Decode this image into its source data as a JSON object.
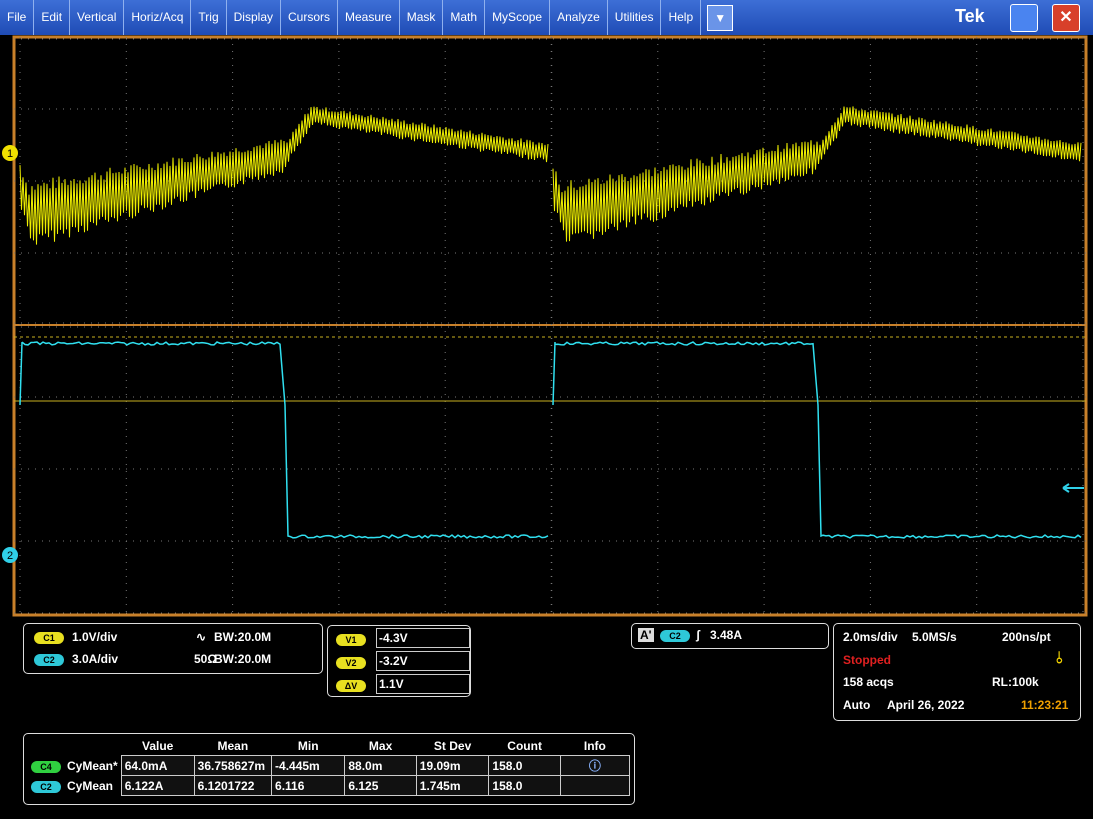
{
  "menu": [
    "File",
    "Edit",
    "Vertical",
    "Horiz/Acq",
    "Trig",
    "Display",
    "Cursors",
    "Measure",
    "Mask",
    "Math",
    "MyScope",
    "Analyze",
    "Utilities",
    "Help"
  ],
  "logo": "Tek",
  "markers": {
    "ch1": "1",
    "ch2": "2"
  },
  "channels": [
    {
      "badge": "C1",
      "scale": "1.0V/div",
      "impedance": "",
      "bandwidth": "BW:20.0M"
    },
    {
      "badge": "C2",
      "scale": "3.0A/div",
      "impedance": "50Ω",
      "bandwidth": "BW:20.0M"
    }
  ],
  "cursors": [
    {
      "label": "V1",
      "value": "-4.3V"
    },
    {
      "label": "V2",
      "value": "-3.2V"
    },
    {
      "label": "ΔV",
      "value": "1.1V"
    }
  ],
  "trigger": {
    "mode": "A'",
    "source": "C2",
    "level": "3.48A"
  },
  "horizontal": {
    "scale": "2.0ms/div",
    "rate": "5.0MS/s",
    "resolution": "200ns/pt",
    "state": "Stopped",
    "acqs": "158 acqs",
    "record": "RL:100k",
    "trigger_mode": "Auto",
    "date": "April 26, 2022",
    "time": "11:23:21"
  },
  "measurements": {
    "headers": [
      "Value",
      "Mean",
      "Min",
      "Max",
      "St Dev",
      "Count",
      "Info"
    ],
    "rows": [
      {
        "badge": "C4",
        "name": "CyMean*",
        "cells": [
          "64.0mA",
          "36.758627m",
          "-4.445m",
          "88.0m",
          "19.09m",
          "158.0"
        ]
      },
      {
        "badge": "C2",
        "name": "CyMean",
        "cells": [
          "6.122A",
          "6.1201722",
          "6.116",
          "6.125",
          "1.745m",
          "158.0"
        ]
      }
    ]
  }
}
